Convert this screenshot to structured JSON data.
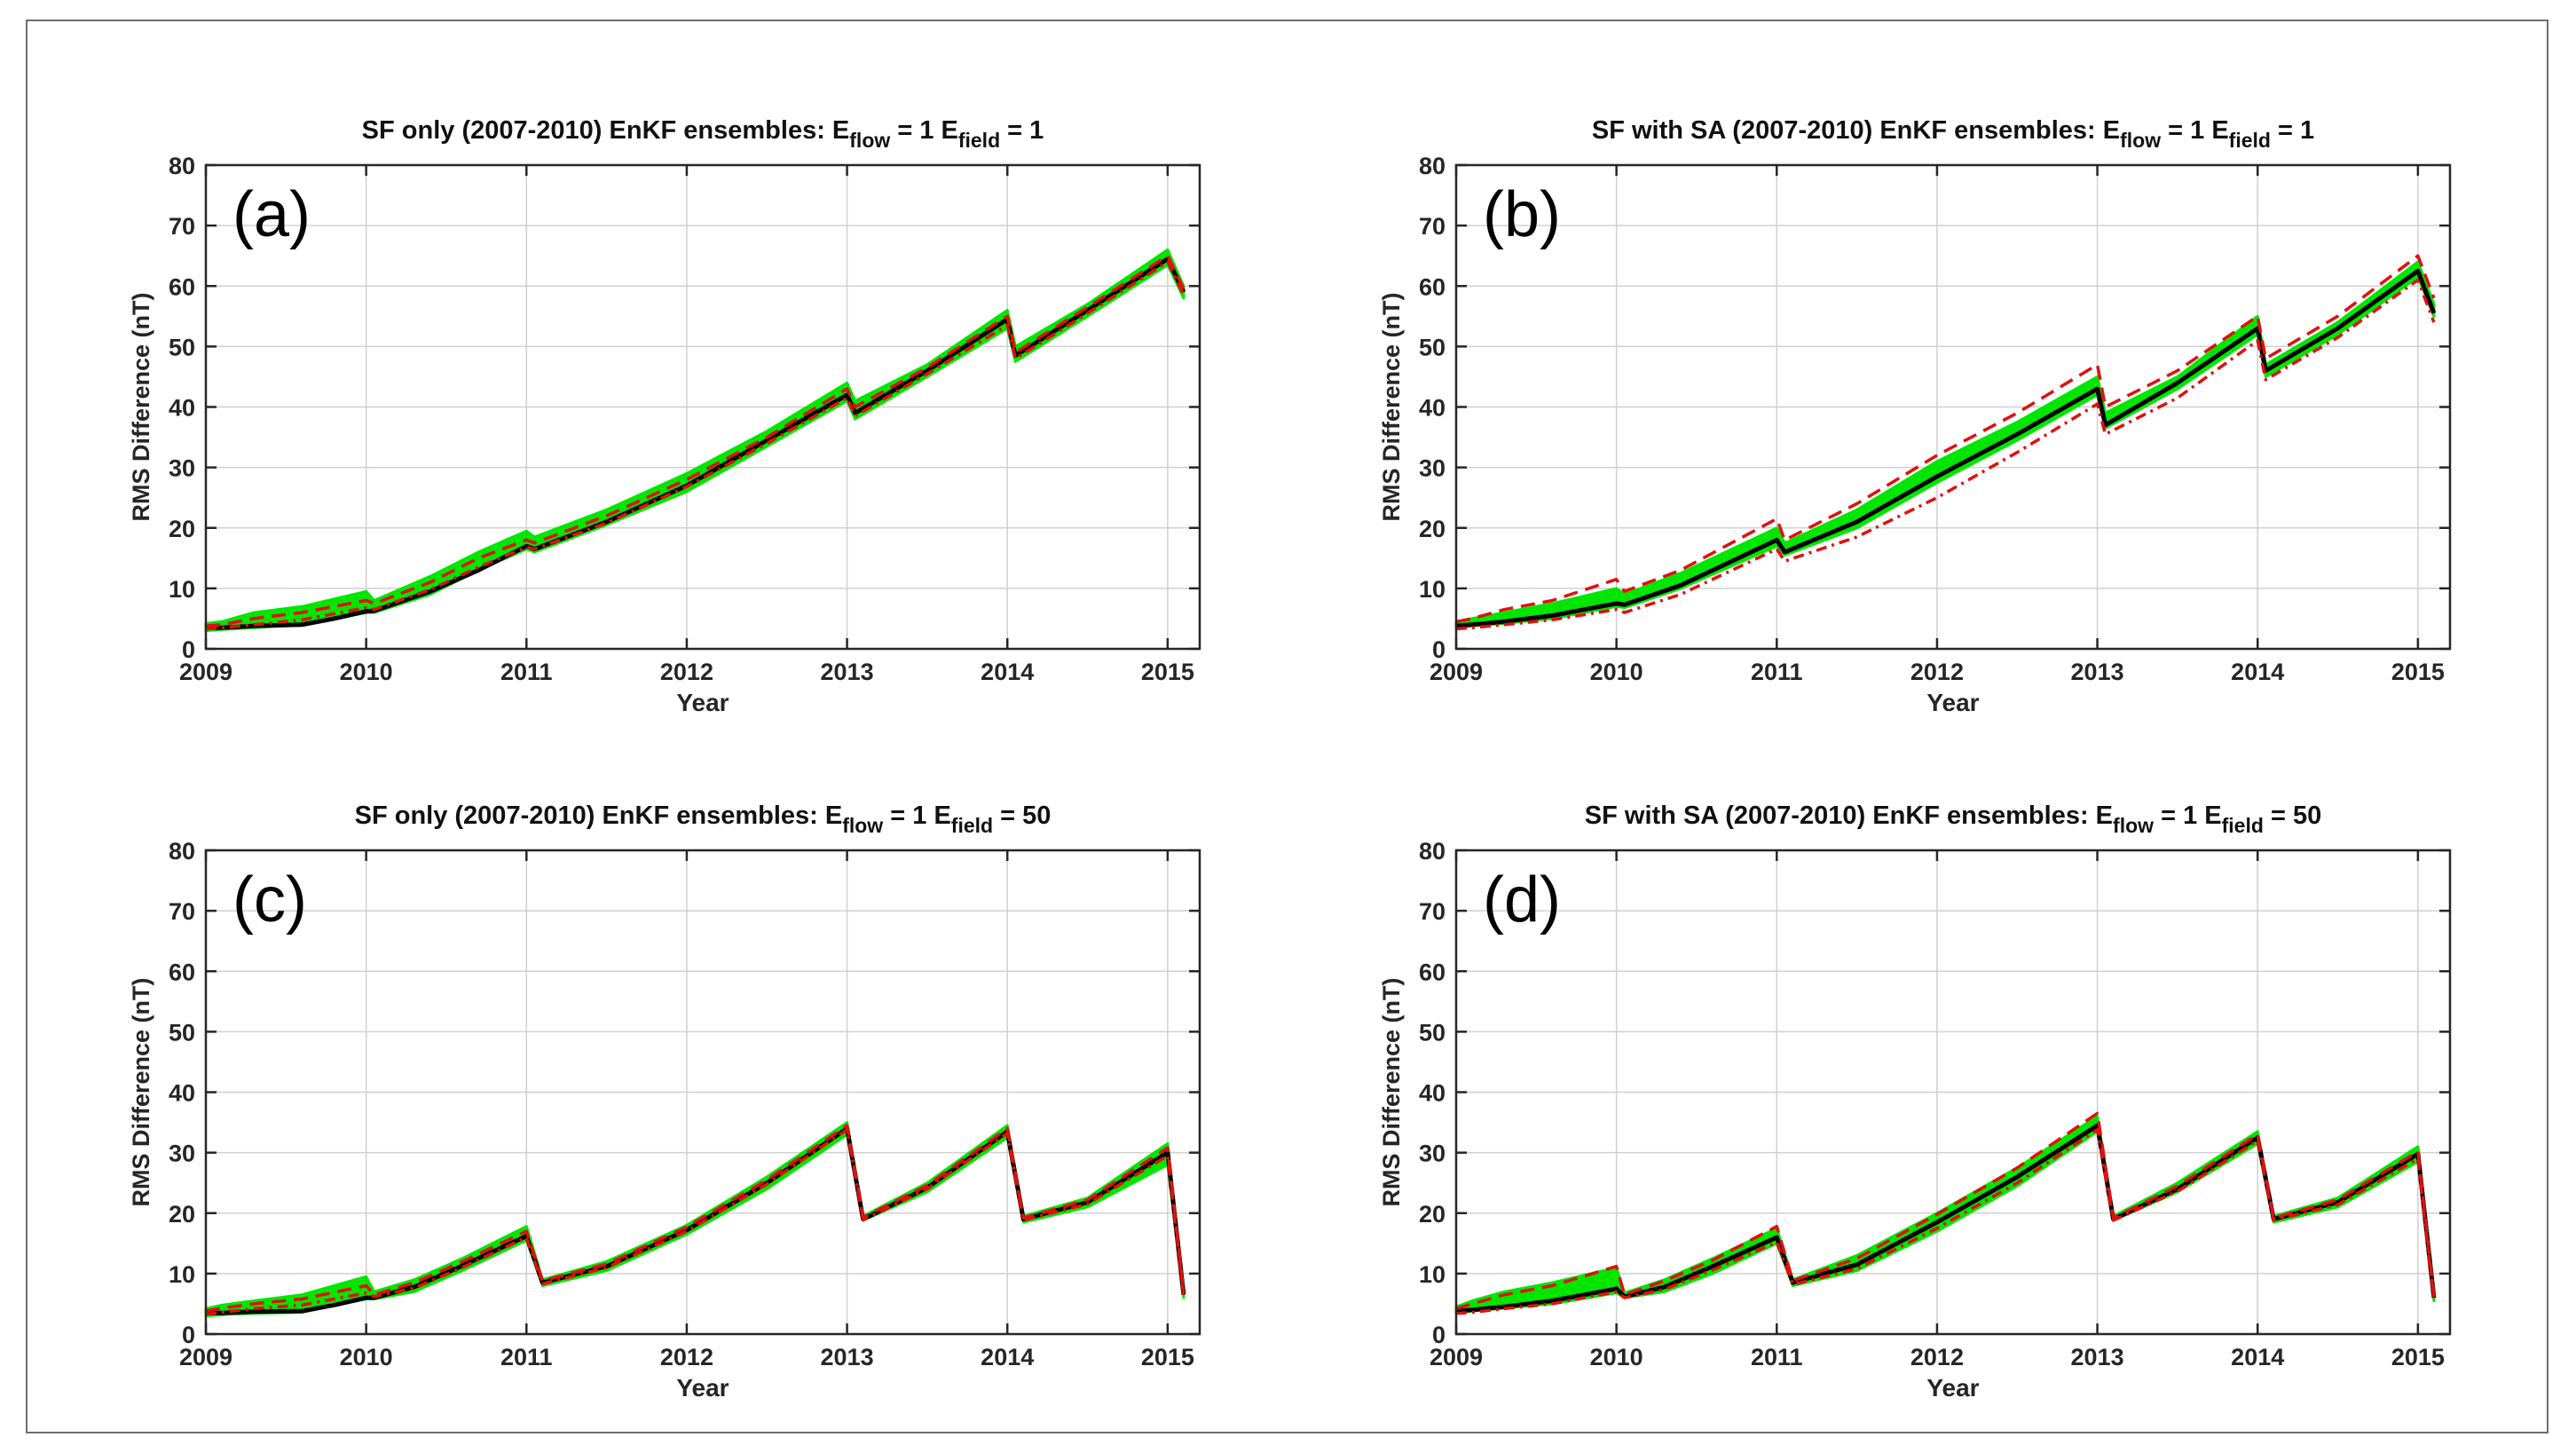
{
  "colors": {
    "ensemble": "#00e600",
    "mean": "#000000",
    "bound": "#e01010",
    "axis": "#262626",
    "grid": "#d0d0d0",
    "frame": "#6e6e6e"
  },
  "chart_data": [
    {
      "type": "line",
      "panel_label": "(a)",
      "title_main": "SF only (2007-2010) EnKF ensembles: E",
      "title_sub1": "flow",
      "title_mid": " = 1 E",
      "title_sub2": "field",
      "title_end": " = 1",
      "xlabel": "Year",
      "ylabel": "RMS Difference (nT)",
      "xlim": [
        2009,
        2015.2
      ],
      "ylim": [
        0,
        80
      ],
      "xticks": [
        "2009",
        "2010",
        "2011",
        "2012",
        "2013",
        "2014",
        "2015"
      ],
      "yticks": [
        "0",
        "10",
        "20",
        "30",
        "40",
        "50",
        "60",
        "70",
        "80"
      ],
      "grid": true,
      "band": {
        "x": [
          2009.0,
          2009.1,
          2009.3,
          2009.6,
          2010.0,
          2010.05,
          2010.4,
          2010.7,
          2011.0,
          2011.05,
          2011.5,
          2012.0,
          2012.5,
          2013.0,
          2013.05,
          2013.5,
          2014.0,
          2014.05,
          2014.5,
          2015.0,
          2015.1
        ],
        "upper": [
          4.2,
          4.5,
          6.0,
          7.0,
          9.5,
          8.0,
          12.0,
          16.0,
          19.5,
          18.5,
          23.0,
          29.0,
          36.0,
          44.0,
          41.0,
          47.0,
          56.0,
          50.0,
          57.0,
          66.0,
          60.0
        ],
        "lower": [
          3.0,
          3.2,
          3.5,
          4.0,
          6.0,
          6.0,
          9.0,
          13.0,
          16.5,
          16.0,
          20.5,
          26.0,
          33.5,
          41.0,
          38.0,
          45.0,
          53.0,
          47.5,
          55.0,
          63.5,
          58.0
        ]
      },
      "series": [
        {
          "role": "mean",
          "x": [
            2009.0,
            2009.1,
            2009.3,
            2009.6,
            2009.8,
            2010.0,
            2010.05,
            2010.4,
            2010.7,
            2011.0,
            2011.05,
            2011.5,
            2012.0,
            2012.5,
            2013.0,
            2013.05,
            2013.5,
            2014.0,
            2014.05,
            2014.5,
            2015.0,
            2015.1
          ],
          "values": [
            3.5,
            3.5,
            3.8,
            4.0,
            5.0,
            6.2,
            6.3,
            9.5,
            13.0,
            17.0,
            16.5,
            21.0,
            27.0,
            34.5,
            42.0,
            39.0,
            46.0,
            54.5,
            48.5,
            56.0,
            64.5,
            59.0
          ]
        },
        {
          "role": "bound",
          "x": [
            2009.0,
            2009.1,
            2009.3,
            2009.6,
            2010.0,
            2010.05,
            2010.4,
            2010.7,
            2011.0,
            2011.05,
            2011.5,
            2012.0,
            2012.5,
            2013.0,
            2013.05,
            2013.5,
            2014.0,
            2014.05,
            2014.5,
            2015.0,
            2015.1
          ],
          "values": [
            3.8,
            4.0,
            5.0,
            6.0,
            8.0,
            7.5,
            11.0,
            15.0,
            18.0,
            17.5,
            22.0,
            28.0,
            35.0,
            43.0,
            40.0,
            46.5,
            55.0,
            49.0,
            56.5,
            65.0,
            59.5
          ]
        },
        {
          "role": "bound",
          "x": [
            2009.0,
            2009.1,
            2009.3,
            2009.6,
            2010.0,
            2010.05,
            2010.4,
            2010.7,
            2011.0,
            2011.05,
            2011.5,
            2012.0,
            2012.5,
            2013.0,
            2013.05,
            2013.5,
            2014.0,
            2014.05,
            2014.5,
            2015.0,
            2015.1
          ],
          "values": [
            3.3,
            3.5,
            4.0,
            4.8,
            6.8,
            6.5,
            9.8,
            13.5,
            16.8,
            16.5,
            20.8,
            26.8,
            34.0,
            41.5,
            38.5,
            45.5,
            53.5,
            48.0,
            55.5,
            64.0,
            58.5
          ]
        }
      ]
    },
    {
      "type": "line",
      "panel_label": "(b)",
      "title_main": "SF with SA (2007-2010) EnKF ensembles: E",
      "title_sub1": "flow",
      "title_mid": " = 1 E",
      "title_sub2": "field",
      "title_end": " = 1",
      "xlabel": "Year",
      "ylabel": "RMS Difference (nT)",
      "xlim": [
        2009,
        2015.2
      ],
      "ylim": [
        0,
        80
      ],
      "xticks": [
        "2009",
        "2010",
        "2011",
        "2012",
        "2013",
        "2014",
        "2015"
      ],
      "yticks": [
        "0",
        "10",
        "20",
        "30",
        "40",
        "50",
        "60",
        "70",
        "80"
      ],
      "grid": true,
      "band": {
        "x": [
          2009.0,
          2009.1,
          2009.3,
          2009.6,
          2010.0,
          2010.05,
          2010.4,
          2011.0,
          2011.05,
          2011.5,
          2012.0,
          2012.5,
          2013.0,
          2013.05,
          2013.5,
          2014.0,
          2014.05,
          2014.5,
          2015.0,
          2015.1
        ],
        "upper": [
          4.5,
          5.0,
          6.0,
          7.5,
          10.0,
          9.0,
          12.5,
          20.0,
          17.5,
          23.0,
          31.0,
          37.5,
          45.0,
          39.0,
          45.0,
          55.0,
          47.0,
          54.0,
          64.0,
          57.0
        ],
        "lower": [
          3.5,
          3.8,
          4.2,
          5.0,
          7.0,
          6.8,
          10.0,
          17.0,
          15.5,
          20.0,
          27.5,
          34.5,
          42.0,
          36.5,
          43.0,
          52.0,
          45.0,
          52.0,
          61.5,
          55.0
        ]
      },
      "series": [
        {
          "role": "mean",
          "x": [
            2009.0,
            2009.1,
            2009.3,
            2009.6,
            2010.0,
            2010.05,
            2010.4,
            2011.0,
            2011.05,
            2011.5,
            2012.0,
            2012.5,
            2013.0,
            2013.05,
            2013.5,
            2014.0,
            2014.05,
            2014.5,
            2015.0,
            2015.1
          ],
          "values": [
            3.8,
            4.0,
            4.5,
            5.5,
            7.5,
            7.3,
            10.5,
            18.0,
            16.0,
            21.0,
            28.5,
            35.5,
            43.0,
            37.0,
            44.0,
            53.0,
            46.0,
            53.0,
            62.5,
            55.5
          ]
        },
        {
          "role": "bound",
          "x": [
            2009.0,
            2009.1,
            2009.3,
            2009.6,
            2010.0,
            2010.05,
            2010.4,
            2011.0,
            2011.05,
            2011.5,
            2012.0,
            2012.5,
            2013.0,
            2013.05,
            2013.5,
            2014.0,
            2014.05,
            2014.5,
            2015.0,
            2015.1
          ],
          "values": [
            4.5,
            5.0,
            6.5,
            8.0,
            11.5,
            9.5,
            13.0,
            21.5,
            18.0,
            24.0,
            32.0,
            39.0,
            47.0,
            40.0,
            46.0,
            55.0,
            48.0,
            55.0,
            65.0,
            58.0
          ]
        },
        {
          "role": "bound",
          "x": [
            2009.0,
            2009.1,
            2009.3,
            2009.6,
            2010.0,
            2010.05,
            2010.4,
            2011.0,
            2011.05,
            2011.5,
            2012.0,
            2012.5,
            2013.0,
            2013.05,
            2013.5,
            2014.0,
            2014.05,
            2014.5,
            2015.0,
            2015.1
          ],
          "values": [
            3.3,
            3.5,
            4.0,
            4.8,
            6.5,
            6.0,
            9.0,
            16.5,
            14.5,
            18.5,
            25.0,
            32.5,
            40.5,
            35.5,
            41.5,
            51.0,
            44.5,
            51.5,
            61.0,
            54.0
          ]
        }
      ]
    },
    {
      "type": "line",
      "panel_label": "(c)",
      "title_main": "SF only (2007-2010) EnKF ensembles: E",
      "title_sub1": "flow",
      "title_mid": " = 1 E",
      "title_sub2": "field",
      "title_end": " = 50",
      "xlabel": "Year",
      "ylabel": "RMS Difference (nT)",
      "xlim": [
        2009,
        2015.2
      ],
      "ylim": [
        0,
        80
      ],
      "xticks": [
        "2009",
        "2010",
        "2011",
        "2012",
        "2013",
        "2014",
        "2015"
      ],
      "yticks": [
        "0",
        "10",
        "20",
        "30",
        "40",
        "50",
        "60",
        "70",
        "80"
      ],
      "grid": true,
      "band": {
        "x": [
          2009.0,
          2009.1,
          2009.3,
          2009.6,
          2010.0,
          2010.05,
          2010.3,
          2010.6,
          2011.0,
          2011.1,
          2011.5,
          2012.0,
          2012.5,
          2013.0,
          2013.1,
          2013.5,
          2014.0,
          2014.1,
          2014.5,
          2015.0,
          2015.1
        ],
        "upper": [
          4.2,
          4.8,
          5.5,
          6.5,
          9.5,
          7.0,
          9.0,
          12.5,
          17.8,
          9.0,
          12.0,
          18.0,
          26.0,
          35.0,
          19.5,
          25.0,
          34.5,
          19.5,
          22.5,
          31.5,
          7.0
        ],
        "lower": [
          3.0,
          3.2,
          3.4,
          3.6,
          5.8,
          5.8,
          7.0,
          10.5,
          15.5,
          8.0,
          10.5,
          16.5,
          24.0,
          33.0,
          18.8,
          23.5,
          32.5,
          18.5,
          21.0,
          28.0,
          6.0
        ]
      },
      "series": [
        {
          "role": "mean",
          "x": [
            2009.0,
            2009.1,
            2009.3,
            2009.6,
            2009.8,
            2010.0,
            2010.05,
            2010.3,
            2010.6,
            2011.0,
            2011.1,
            2011.5,
            2012.0,
            2012.5,
            2013.0,
            2013.1,
            2013.5,
            2014.0,
            2014.1,
            2014.5,
            2015.0,
            2015.1
          ],
          "values": [
            3.5,
            3.5,
            3.7,
            3.8,
            4.8,
            6.0,
            6.0,
            7.8,
            11.3,
            16.2,
            8.5,
            11.2,
            17.2,
            25.0,
            34.0,
            19.0,
            24.2,
            33.5,
            19.0,
            21.8,
            30.0,
            6.5
          ]
        },
        {
          "role": "bound",
          "x": [
            2009.0,
            2009.1,
            2009.3,
            2009.6,
            2010.0,
            2010.05,
            2010.3,
            2010.6,
            2011.0,
            2011.1,
            2011.5,
            2012.0,
            2012.5,
            2013.0,
            2013.1,
            2013.5,
            2014.0,
            2014.1,
            2014.5,
            2015.0,
            2015.1
          ],
          "values": [
            3.8,
            4.3,
            5.0,
            5.8,
            8.0,
            6.5,
            8.5,
            12.0,
            17.0,
            8.8,
            11.6,
            17.7,
            25.5,
            34.5,
            19.3,
            24.6,
            34.0,
            19.2,
            22.2,
            30.8,
            6.8
          ]
        },
        {
          "role": "bound",
          "x": [
            2009.0,
            2009.1,
            2009.3,
            2009.6,
            2010.0,
            2010.05,
            2010.3,
            2010.6,
            2011.0,
            2011.1,
            2011.5,
            2012.0,
            2012.5,
            2013.0,
            2013.1,
            2013.5,
            2014.0,
            2014.1,
            2014.5,
            2015.0,
            2015.1
          ],
          "values": [
            3.3,
            3.6,
            4.2,
            4.8,
            6.8,
            6.2,
            7.6,
            11.0,
            16.0,
            8.3,
            11.0,
            17.0,
            24.8,
            33.8,
            18.9,
            24.0,
            33.2,
            18.8,
            21.5,
            29.5,
            6.3
          ]
        }
      ]
    },
    {
      "type": "line",
      "panel_label": "(d)",
      "title_main": "SF with SA (2007-2010) EnKF ensembles: E",
      "title_sub1": "flow",
      "title_mid": " = 1 E",
      "title_sub2": "field",
      "title_end": " = 50",
      "xlabel": "Year",
      "ylabel": "RMS Difference (nT)",
      "xlim": [
        2009,
        2015.2
      ],
      "ylim": [
        0,
        80
      ],
      "xticks": [
        "2009",
        "2010",
        "2011",
        "2012",
        "2013",
        "2014",
        "2015"
      ],
      "yticks": [
        "0",
        "10",
        "20",
        "30",
        "40",
        "50",
        "60",
        "70",
        "80"
      ],
      "grid": true,
      "band": {
        "x": [
          2009.0,
          2009.1,
          2009.3,
          2009.6,
          2010.0,
          2010.05,
          2010.3,
          2010.6,
          2011.0,
          2011.1,
          2011.5,
          2012.0,
          2012.5,
          2013.0,
          2013.1,
          2013.5,
          2014.0,
          2014.1,
          2014.5,
          2015.0,
          2015.1
        ],
        "upper": [
          4.5,
          5.5,
          7.0,
          8.5,
          11.0,
          6.8,
          9.0,
          12.5,
          17.5,
          9.0,
          13.0,
          20.0,
          27.5,
          36.0,
          19.5,
          25.0,
          33.5,
          19.5,
          22.5,
          31.0,
          6.5
        ],
        "lower": [
          3.5,
          3.8,
          4.3,
          5.0,
          6.8,
          6.0,
          7.0,
          10.0,
          15.0,
          8.0,
          10.5,
          17.0,
          24.5,
          33.5,
          18.8,
          23.5,
          31.5,
          18.5,
          21.0,
          28.5,
          5.5
        ]
      },
      "series": [
        {
          "role": "mean",
          "x": [
            2009.0,
            2009.1,
            2009.3,
            2009.6,
            2010.0,
            2010.05,
            2010.3,
            2010.6,
            2011.0,
            2011.1,
            2011.5,
            2012.0,
            2012.5,
            2013.0,
            2013.1,
            2013.5,
            2014.0,
            2014.1,
            2014.5,
            2015.0,
            2015.1
          ],
          "values": [
            3.8,
            4.0,
            4.5,
            5.5,
            7.5,
            6.2,
            7.8,
            11.2,
            16.0,
            8.5,
            11.5,
            18.5,
            26.0,
            34.5,
            19.0,
            24.0,
            32.5,
            19.0,
            21.8,
            29.8,
            6.0
          ]
        },
        {
          "role": "bound",
          "x": [
            2009.0,
            2009.1,
            2009.3,
            2009.6,
            2010.0,
            2010.05,
            2010.3,
            2010.6,
            2011.0,
            2011.1,
            2011.5,
            2012.0,
            2012.5,
            2013.0,
            2013.1,
            2013.5,
            2014.0,
            2014.1,
            2014.5,
            2015.0,
            2015.1
          ],
          "values": [
            4.2,
            5.0,
            6.5,
            8.0,
            11.2,
            6.5,
            8.8,
            12.2,
            17.8,
            8.8,
            12.5,
            19.8,
            27.5,
            36.5,
            19.2,
            24.5,
            33.0,
            19.2,
            22.2,
            30.2,
            6.2
          ]
        },
        {
          "role": "bound",
          "x": [
            2009.0,
            2009.1,
            2009.3,
            2009.6,
            2010.0,
            2010.05,
            2010.3,
            2010.6,
            2011.0,
            2011.1,
            2011.5,
            2012.0,
            2012.5,
            2013.0,
            2013.1,
            2013.5,
            2014.0,
            2014.1,
            2014.5,
            2015.0,
            2015.1
          ],
          "values": [
            3.4,
            3.6,
            4.2,
            5.0,
            7.0,
            6.0,
            7.4,
            10.6,
            15.2,
            8.2,
            10.8,
            17.5,
            25.0,
            33.8,
            18.8,
            23.6,
            32.0,
            18.8,
            21.4,
            29.0,
            5.6
          ]
        }
      ]
    }
  ]
}
